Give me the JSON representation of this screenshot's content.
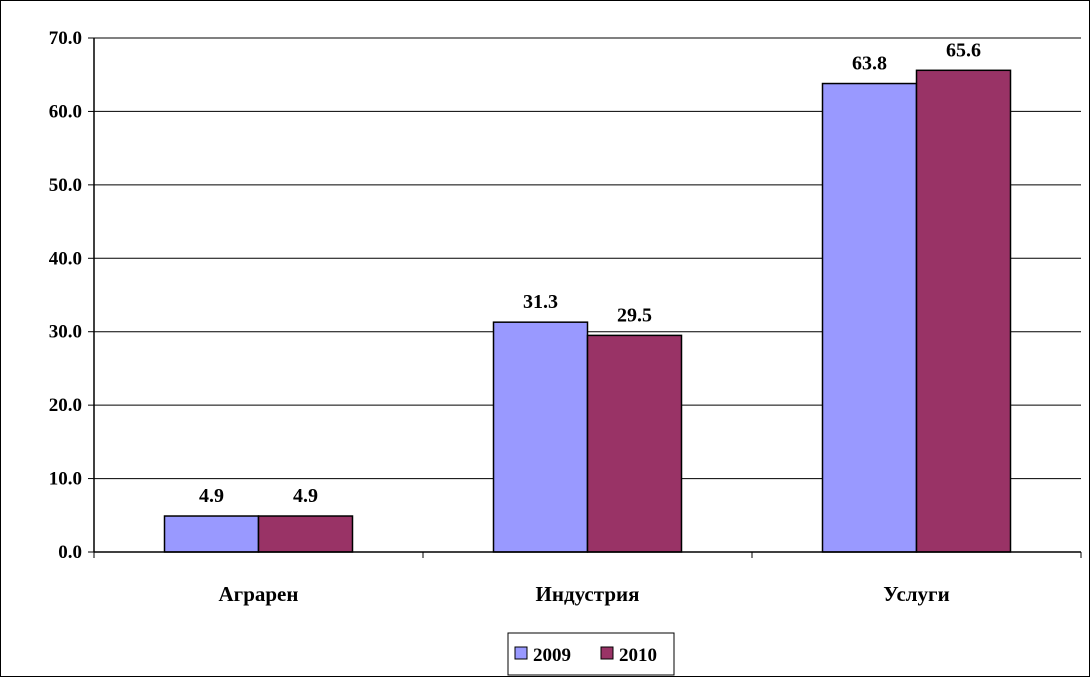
{
  "chart_data": {
    "type": "bar",
    "categories": [
      "Аграрен",
      "Индустрия",
      "Услуги"
    ],
    "series": [
      {
        "name": "2009",
        "values": [
          4.9,
          31.3,
          63.8
        ],
        "color": "#9999ff"
      },
      {
        "name": "2010",
        "values": [
          4.9,
          29.5,
          65.6
        ],
        "color": "#993366"
      }
    ],
    "ylim": [
      0,
      70
    ],
    "yticks": [
      "0.0",
      "10.0",
      "20.0",
      "30.0",
      "40.0",
      "50.0",
      "60.0",
      "70.0"
    ],
    "grid": true,
    "legend_position": "bottom",
    "title": "",
    "xlabel": "",
    "ylabel": ""
  }
}
